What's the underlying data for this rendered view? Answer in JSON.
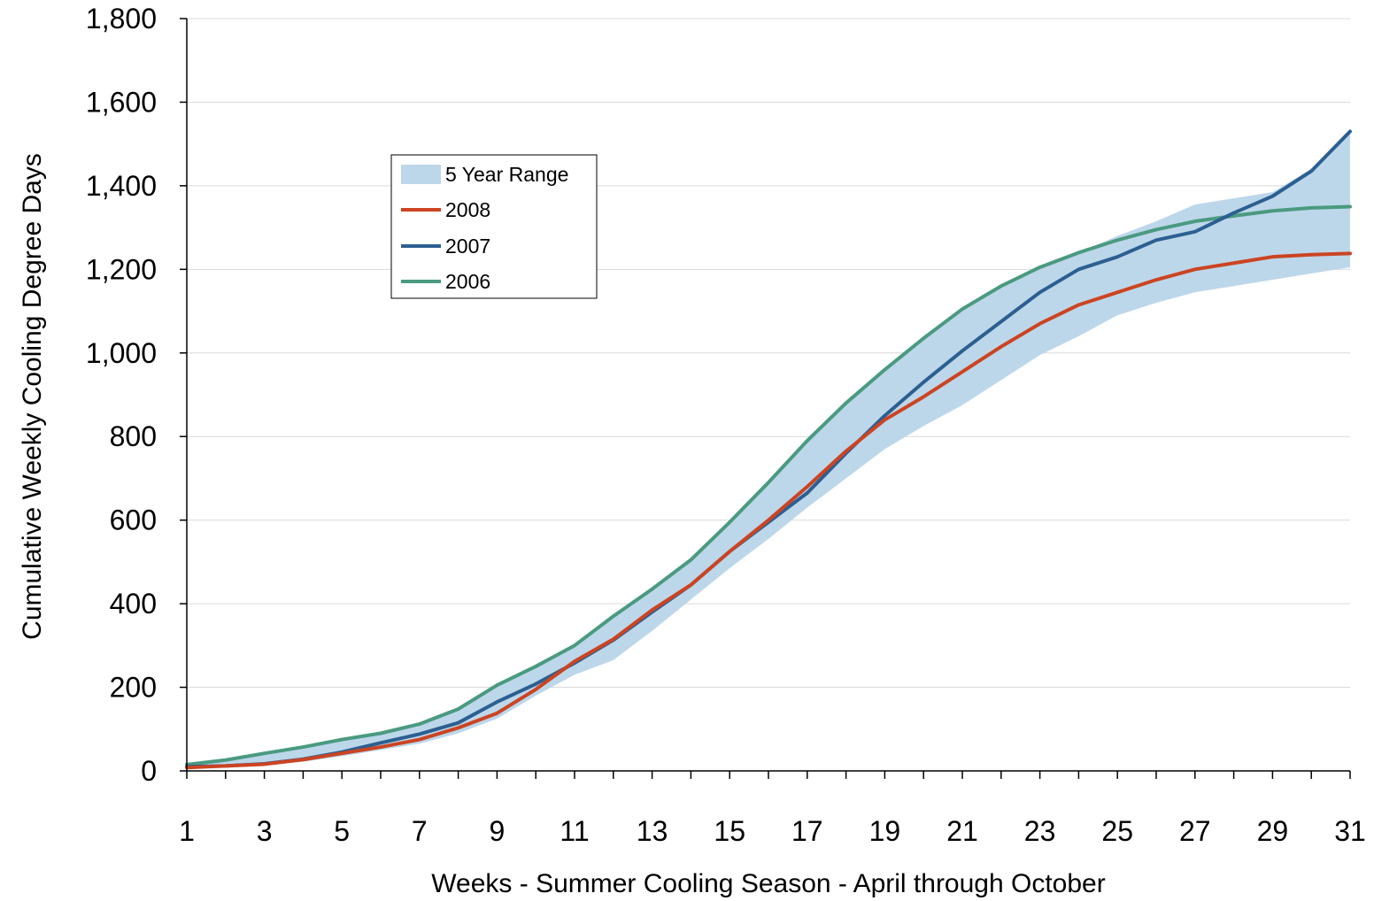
{
  "chart_data": {
    "type": "line",
    "title": "",
    "xlabel": "Weeks - Summer Cooling Season - April through October",
    "ylabel": "Cumulative Weekly Cooling Degree Days",
    "xlim": [
      1,
      31
    ],
    "ylim": [
      0,
      1800
    ],
    "x_ticks": [
      1,
      3,
      5,
      7,
      9,
      11,
      13,
      15,
      17,
      19,
      21,
      23,
      25,
      27,
      29,
      31
    ],
    "x_tick_labels": [
      "1",
      "3",
      "5",
      "7",
      "9",
      "11",
      "13",
      "15",
      "17",
      "19",
      "21",
      "23",
      "25",
      "27",
      "29",
      "31"
    ],
    "y_ticks": [
      0,
      200,
      400,
      600,
      800,
      1000,
      1200,
      1400,
      1600,
      1800
    ],
    "y_tick_labels": [
      "0",
      "200",
      "400",
      "600",
      "800",
      "1,000",
      "1,200",
      "1,400",
      "1,600",
      "1,800"
    ],
    "grid": "horizontal",
    "legend_position": "upper-left",
    "x": [
      1,
      2,
      3,
      4,
      5,
      6,
      7,
      8,
      9,
      10,
      11,
      12,
      13,
      14,
      15,
      16,
      17,
      18,
      19,
      20,
      21,
      22,
      23,
      24,
      25,
      26,
      27,
      28,
      29,
      30,
      31
    ],
    "range_band": {
      "name": "5 Year Range",
      "color": "#bdd7ea",
      "lower": [
        5,
        10,
        13,
        22,
        35,
        50,
        65,
        90,
        125,
        180,
        230,
        265,
        335,
        410,
        485,
        555,
        630,
        700,
        770,
        825,
        875,
        935,
        995,
        1040,
        1090,
        1120,
        1145,
        1160,
        1175,
        1190,
        1205
      ],
      "upper": [
        15,
        26,
        42,
        57,
        75,
        90,
        112,
        148,
        205,
        250,
        300,
        370,
        440,
        505,
        595,
        690,
        790,
        880,
        960,
        1035,
        1105,
        1160,
        1205,
        1240,
        1280,
        1315,
        1355,
        1370,
        1385,
        1440,
        1530
      ]
    },
    "series": [
      {
        "name": "2008",
        "color": "#cc4422",
        "values": [
          8,
          12,
          16,
          27,
          42,
          57,
          75,
          103,
          138,
          195,
          262,
          315,
          385,
          445,
          525,
          600,
          680,
          765,
          840,
          895,
          955,
          1015,
          1070,
          1115,
          1145,
          1175,
          1200,
          1215,
          1230,
          1235,
          1238
        ]
      },
      {
        "name": "2007",
        "color": "#2c5f91",
        "values": [
          10,
          12,
          17,
          28,
          45,
          67,
          88,
          115,
          165,
          208,
          258,
          313,
          380,
          445,
          525,
          595,
          665,
          760,
          850,
          930,
          1005,
          1075,
          1145,
          1200,
          1230,
          1270,
          1290,
          1335,
          1375,
          1435,
          1530
        ]
      },
      {
        "name": "2006",
        "color": "#4a9a80",
        "values": [
          15,
          26,
          42,
          57,
          75,
          90,
          112,
          148,
          205,
          250,
          300,
          370,
          435,
          505,
          595,
          690,
          790,
          880,
          960,
          1035,
          1105,
          1160,
          1205,
          1240,
          1270,
          1295,
          1315,
          1328,
          1340,
          1347,
          1350
        ]
      }
    ]
  }
}
